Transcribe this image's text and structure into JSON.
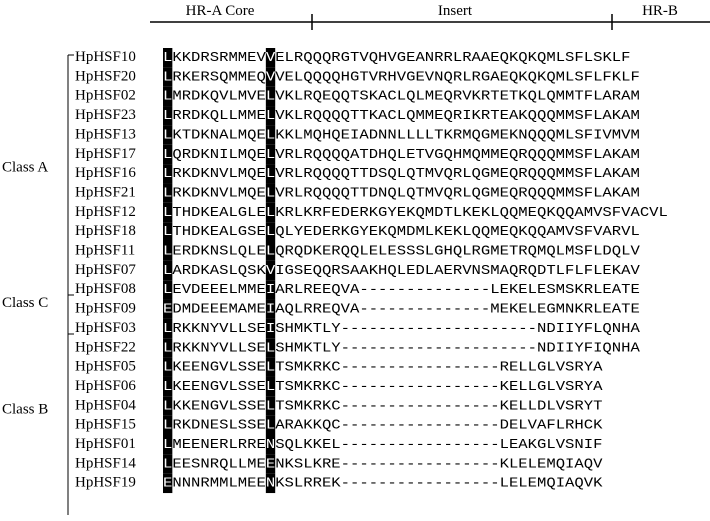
{
  "header": {
    "regions": [
      "HR-A Core",
      "Insert",
      "HR-B"
    ]
  },
  "groups": [
    {
      "label": "Class A",
      "rows": [
        {
          "name": "HpHSF10",
          "sequence": "LKKDRSRMMEVVELRQQQRGTVQHVGEANRRLRAAEQKQKQMLSFLSKLF"
        },
        {
          "name": "HpHSF20",
          "sequence": "LRKERSQMMEQVVELQQQQHGTVRHVGEVNQRLRGAEQKQKQMLSFLFKLF"
        },
        {
          "name": "HpHSF02",
          "sequence": "LMRDKQVLMVELVKLRQEQQTSKACLQLMEQRVKRTETKQLQMMTFLARAM"
        },
        {
          "name": "HpHSF23",
          "sequence": "LRRDKQLLMMELVKLRQQQQTTKACLQMMEQRIKRTEAKQQQMMSFLAKAM"
        },
        {
          "name": "HpHSF13",
          "sequence": "LKTDKNALMQELKKLMQHQEIADNNLLLLTKRMQGMEKNQQQMLSFIVMVM"
        },
        {
          "name": "HpHSF17",
          "sequence": "LQRDKNILMQELVRLRQQQQATDHQLETVGQHMQMMEQRQQQMMSFLAKAM"
        },
        {
          "name": "HpHSF16",
          "sequence": "LRKDKNVLMQELVRLRQQQQTTDSQLQTMVQRLQGMEQRQQQMMSFLAKAM"
        },
        {
          "name": "HpHSF21",
          "sequence": "LRKDKNVLMQELVRLRQQQQTTDNQLQTMVQRLQGMEQRQQQMMSFLAKAM"
        },
        {
          "name": "HpHSF12",
          "sequence": "LTHDKEALGLELKRLKRFEDERKGYEKQMDTLKEKLQQMEQKQQAMVSFVACVL"
        },
        {
          "name": "HpHSF18",
          "sequence": "LTHDKEALGSELQLYEDERKGYEKQMDMLKEKLQQMEQKQQAMVSFVARVL"
        },
        {
          "name": "HpHSF11",
          "sequence": "LERDKNSLQLELQRQDKERQQLELESSSLGHQLRGMETRQMQLMSFLDQLV"
        },
        {
          "name": "HpHSF07",
          "sequence": "LARDKASLQSKVIGSEQQRSAAKHQLEDLAERVNSMAQRQDTLFLFLEKAV"
        }
      ]
    },
    {
      "label": "Class C",
      "rows": [
        {
          "name": "HpHSF08",
          "sequence": "LEVDEEELMMEIARLREEQVA--------------LEKELESMSKRLEATE"
        },
        {
          "name": "HpHSF09",
          "sequence": "EDMDEEEMAMEIAQLRREQVA--------------MEKELEGMNKRLEATE"
        }
      ]
    },
    {
      "label": "Class B",
      "rows": [
        {
          "name": "HpHSF03",
          "sequence": "LRKKNYVLLSEISHMKTLY---------------------NDIIYFLQNHA"
        },
        {
          "name": "HpHSF22",
          "sequence": "LRKKNYVLLSELSHMKTLY---------------------NDIIYFIQNHA"
        },
        {
          "name": "HpHSF05",
          "sequence": "LKEENGVLSSELTSMKRKC-----------------RELLGLVSRYA"
        },
        {
          "name": "HpHSF06",
          "sequence": "LKEENGVLSSELTSMKRKC-----------------KELLGLVSRYA"
        },
        {
          "name": "HpHSF04",
          "sequence": "LKKENGVLSSELTSMKRKC-----------------KELLDLVSRYT"
        },
        {
          "name": "HpHSF15",
          "sequence": "LRKDNESLSSELARAKKQC-----------------DELVAFLRHCK"
        },
        {
          "name": "HpHSF01",
          "sequence": "LMEENERLRRENSQLKKEL-----------------LEAKGLVSNIF"
        },
        {
          "name": "HpHSF14",
          "sequence": "LEESNRQLLMEENKSLKRE-----------------KLELEMQIAQV"
        },
        {
          "name": "HpHSF19",
          "sequence": "ENNNRMMLMEENKSLRREK-----------------LELEMQIAQVK"
        }
      ]
    }
  ]
}
